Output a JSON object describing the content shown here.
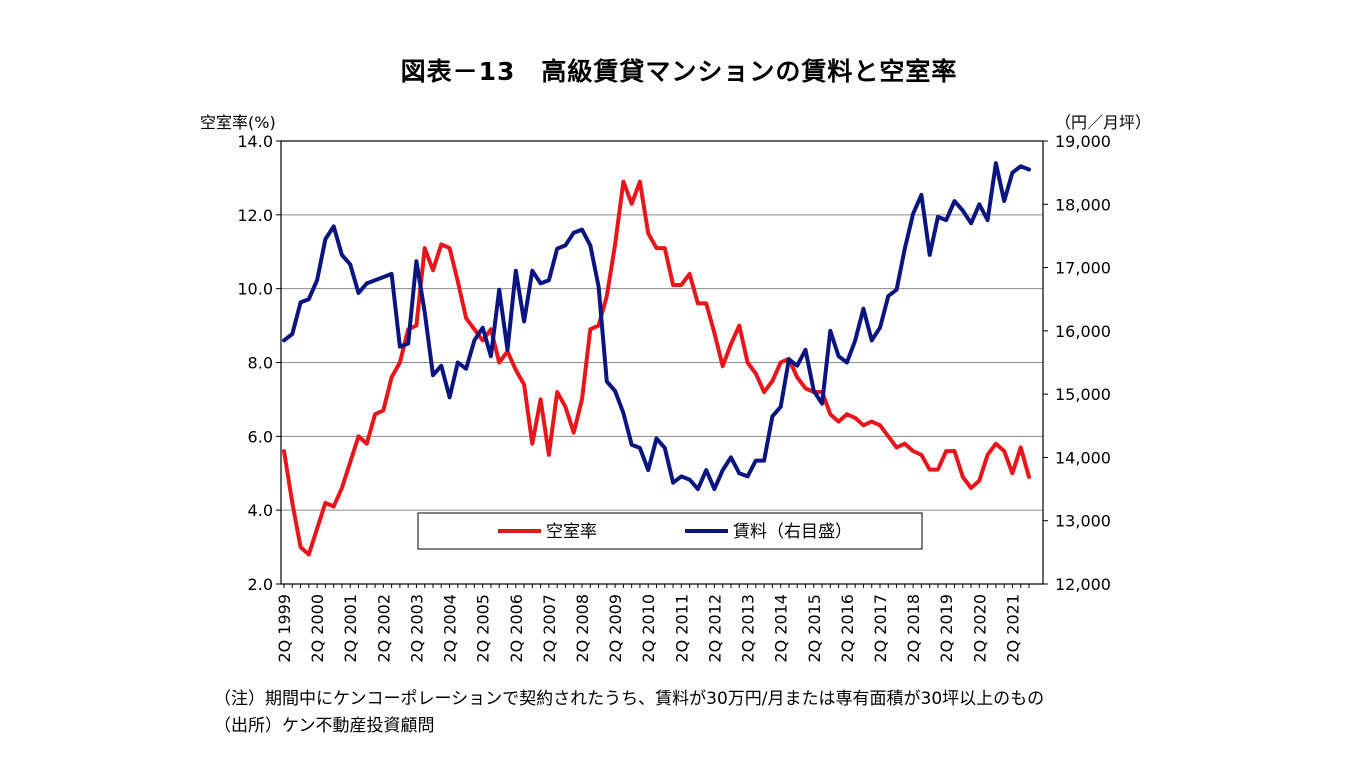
{
  "title": "図表－13　高級賃貸マンションの賃料と空室率",
  "notes": {
    "note": "（注）期間中にケンコーポレーションで契約されたうち、賃料が30万円/月または専有面積が30坪以上のもの",
    "source": "（出所）ケン不動産投資顧問"
  },
  "chart_data": {
    "type": "line",
    "left_axis": {
      "label": "空室率(%)",
      "min": 2,
      "max": 14,
      "ticks": [
        "2.0",
        "4.0",
        "6.0",
        "8.0",
        "10.0",
        "12.0",
        "14.0"
      ]
    },
    "right_axis": {
      "label": "（円／月坪）",
      "min": 12000,
      "max": 19000,
      "ticks": [
        "12,000",
        "13,000",
        "14,000",
        "15,000",
        "16,000",
        "17,000",
        "18,000",
        "19,000"
      ]
    },
    "x_labels": [
      "2Q 1999",
      "2Q 2000",
      "2Q 2001",
      "2Q 2002",
      "2Q 2003",
      "2Q 2004",
      "2Q 2005",
      "2Q 2006",
      "2Q 2007",
      "2Q 2008",
      "2Q 2009",
      "2Q 2010",
      "2Q 2011",
      "2Q 2012",
      "2Q 2013",
      "2Q 2014",
      "2Q 2015",
      "2Q 2016",
      "2Q 2017",
      "2Q 2018",
      "2Q 2019",
      "2Q 2020",
      "2Q 2021"
    ],
    "x_start": "1999Q2",
    "grid": true,
    "legend_position": "bottom-center",
    "series": [
      {
        "name": "空室率",
        "axis": "left",
        "color": "#e8161b",
        "values": [
          5.6,
          4.2,
          3.0,
          2.8,
          3.5,
          4.2,
          4.1,
          4.6,
          5.3,
          6.0,
          5.8,
          6.6,
          6.7,
          7.6,
          8.0,
          8.9,
          9.0,
          11.1,
          10.5,
          11.2,
          11.1,
          10.2,
          9.2,
          8.9,
          8.6,
          8.9,
          8.0,
          8.3,
          7.8,
          7.4,
          5.8,
          7.0,
          5.5,
          7.2,
          6.8,
          6.1,
          7.0,
          8.9,
          9.0,
          9.8,
          11.2,
          12.9,
          12.3,
          12.9,
          11.5,
          11.1,
          11.1,
          10.1,
          10.1,
          10.4,
          9.6,
          9.6,
          8.8,
          7.9,
          8.5,
          9.0,
          8.0,
          7.7,
          7.2,
          7.5,
          8.0,
          8.1,
          7.6,
          7.3,
          7.2,
          7.2,
          6.6,
          6.4,
          6.6,
          6.5,
          6.3,
          6.4,
          6.3,
          6.0,
          5.7,
          5.8,
          5.6,
          5.5,
          5.1,
          5.1,
          5.6,
          5.6,
          4.9,
          4.6,
          4.8,
          5.5,
          5.8,
          5.6,
          5.0,
          5.7,
          4.9
        ]
      },
      {
        "name": "賃料（右目盛）",
        "axis": "right",
        "color": "#0a1580",
        "values": [
          15850,
          15950,
          16450,
          16500,
          16800,
          17450,
          17650,
          17200,
          17050,
          16600,
          16750,
          16800,
          16850,
          16900,
          15750,
          15800,
          17100,
          16300,
          15300,
          15450,
          14950,
          15500,
          15400,
          15850,
          16050,
          15600,
          16650,
          15700,
          16950,
          16150,
          16950,
          16750,
          16800,
          17300,
          17350,
          17550,
          17600,
          17350,
          16700,
          15200,
          15050,
          14700,
          14200,
          14150,
          13800,
          14300,
          14150,
          13600,
          13700,
          13650,
          13500,
          13800,
          13500,
          13800,
          14000,
          13750,
          13700,
          13950,
          13950,
          14650,
          14800,
          15550,
          15450,
          15700,
          15050,
          14850,
          16000,
          15600,
          15500,
          15850,
          16350,
          15850,
          16050,
          16550,
          16650,
          17300,
          17850,
          18150,
          17200,
          17800,
          17750,
          18050,
          17900,
          17700,
          18000,
          17750,
          18650,
          18050,
          18500,
          18600,
          18550
        ]
      }
    ],
    "legend": [
      "空室率",
      "賃料（右目盛）"
    ]
  }
}
